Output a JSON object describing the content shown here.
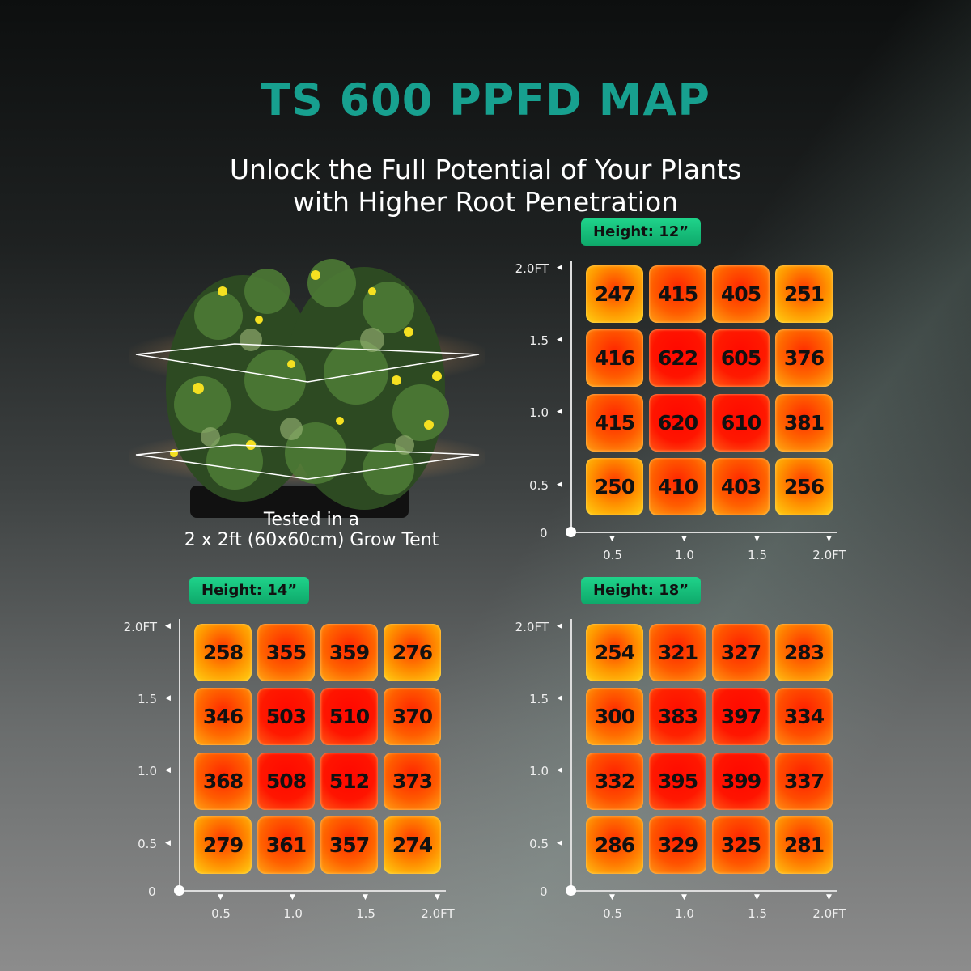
{
  "title": "TS 600 PPFD MAP",
  "subtitle_line1": "Unlock the Full Potential of Your Plants",
  "subtitle_line2": "with Higher Root Penetration",
  "caption_line1": "Tested in a",
  "caption_line2": "2 x 2ft (60x60cm) Grow Tent",
  "colors": {
    "title": "#17a08f",
    "badge": "#14c07a",
    "tile_high": "#ff1a00",
    "tile_low": "#ffb000"
  },
  "chart_data": [
    {
      "type": "heatmap",
      "title": "Height: 12”",
      "x_ticks": [
        "0.5",
        "1.0",
        "1.5",
        "2.0FT"
      ],
      "y_ticks": [
        "2.0FT",
        "1.5",
        "1.0",
        "0.5"
      ],
      "origin_label": "0",
      "rows": [
        [
          247,
          415,
          405,
          251
        ],
        [
          416,
          622,
          605,
          376
        ],
        [
          415,
          620,
          610,
          381
        ],
        [
          250,
          410,
          403,
          256
        ]
      ]
    },
    {
      "type": "heatmap",
      "title": "Height: 14”",
      "x_ticks": [
        "0.5",
        "1.0",
        "1.5",
        "2.0FT"
      ],
      "y_ticks": [
        "2.0FT",
        "1.5",
        "1.0",
        "0.5"
      ],
      "origin_label": "0",
      "rows": [
        [
          258,
          355,
          359,
          276
        ],
        [
          346,
          503,
          510,
          370
        ],
        [
          368,
          508,
          512,
          373
        ],
        [
          279,
          361,
          357,
          274
        ]
      ]
    },
    {
      "type": "heatmap",
      "title": "Height: 18”",
      "x_ticks": [
        "0.5",
        "1.0",
        "1.5",
        "2.0FT"
      ],
      "y_ticks": [
        "2.0FT",
        "1.5",
        "1.0",
        "0.5"
      ],
      "origin_label": "0",
      "rows": [
        [
          254,
          321,
          327,
          283
        ],
        [
          300,
          383,
          397,
          334
        ],
        [
          332,
          395,
          399,
          337
        ],
        [
          286,
          329,
          325,
          281
        ]
      ]
    }
  ]
}
